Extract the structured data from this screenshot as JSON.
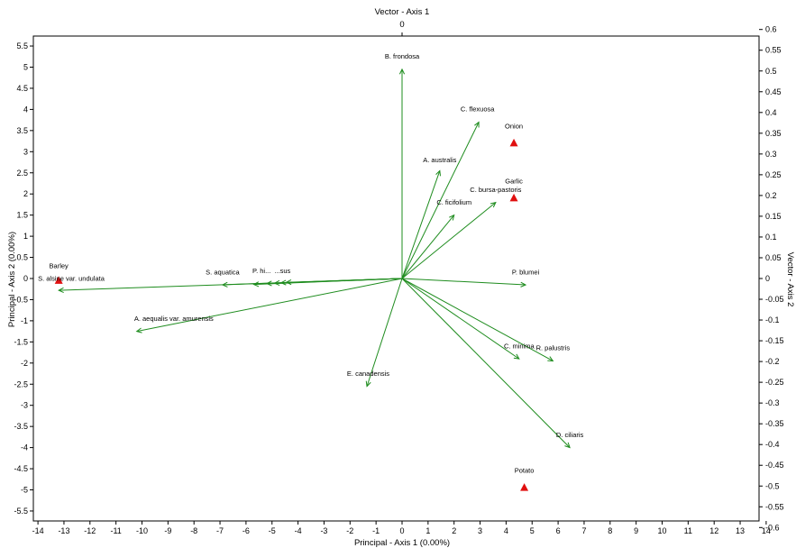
{
  "chart_data": {
    "type": "scatter",
    "subtype": "biplot",
    "title": "",
    "top_axis_title": "Vector - Axis 1",
    "top_axis_tick": "0",
    "xlabel": "Principal - Axis 1 (0.00%)",
    "ylabel": "Principal - Axis 2 (0.00%)",
    "right_axis_title": "Vector - Axis 2",
    "xlim": [
      -14.3,
      14.6
    ],
    "ylim": [
      -5.8,
      5.8
    ],
    "right_ylim": [
      -0.64,
      0.64
    ],
    "x_ticks": [
      -14,
      -13,
      -12,
      -11,
      -10,
      -9,
      -8,
      -7,
      -6,
      -5,
      -4,
      -3,
      -2,
      -1,
      0,
      1,
      2,
      3,
      4,
      5,
      6,
      7,
      8,
      9,
      10,
      11,
      12,
      13,
      14
    ],
    "y_ticks": [
      -5.5,
      -5,
      -4.5,
      -4,
      -3.5,
      -3,
      -2.5,
      -2,
      -1.5,
      -1,
      -0.5,
      0,
      0.5,
      1,
      1.5,
      2,
      2.5,
      3,
      3.5,
      4,
      4.5,
      5,
      5.5
    ],
    "right_ticks": [
      -0.6,
      -0.55,
      -0.5,
      -0.45,
      -0.4,
      -0.35,
      -0.3,
      -0.25,
      -0.2,
      -0.15,
      -0.1,
      -0.05,
      0,
      0.05,
      0.1,
      0.15,
      0.2,
      0.25,
      0.3,
      0.35,
      0.4,
      0.45,
      0.5,
      0.55,
      0.6
    ],
    "grid": false,
    "colors": {
      "vector": "#1e8c1e",
      "point": "#e01010",
      "axis": "#000000"
    },
    "vectors": [
      {
        "name": "B. frondosa",
        "x": 0.0,
        "y": 4.95
      },
      {
        "name": "C. flexuosa",
        "x": 2.95,
        "y": 3.7
      },
      {
        "name": "A. australis",
        "x": 1.45,
        "y": 2.55
      },
      {
        "name": "C. bursa-pastoris",
        "x": 3.6,
        "y": 1.8
      },
      {
        "name": "C. ficifolium",
        "x": 2.0,
        "y": 1.5
      },
      {
        "name": "P. blumei",
        "x": 4.75,
        "y": -0.15
      },
      {
        "name": "C. minima",
        "x": 4.5,
        "y": -1.9
      },
      {
        "name": "R. palustris",
        "x": 5.8,
        "y": -1.95
      },
      {
        "name": "D. ciliaris",
        "x": 6.45,
        "y": -4.0
      },
      {
        "name": "E. canadensis",
        "x": -1.35,
        "y": -2.55
      },
      {
        "name": "A. aequalis var. amurensis",
        "x": -10.2,
        "y": -1.25
      },
      {
        "name": "S. alsine var. undulata",
        "x": -13.2,
        "y": -0.28
      },
      {
        "name": "S. aquatica",
        "x": -6.9,
        "y": -0.15
      },
      {
        "name": "P. hi...",
        "x": -5.7,
        "y": -0.14
      },
      {
        "name": "...",
        "x": -5.2,
        "y": -0.12
      },
      {
        "name": "...",
        "x": -4.9,
        "y": -0.11
      },
      {
        "name": "...",
        "x": -4.65,
        "y": -0.1
      },
      {
        "name": "...sus",
        "x": -4.45,
        "y": -0.09
      }
    ],
    "points": [
      {
        "name": "Onion",
        "x": 4.3,
        "y": 3.2
      },
      {
        "name": "Garlic",
        "x": 4.3,
        "y": 1.9
      },
      {
        "name": "Barley",
        "x": -13.2,
        "y": -0.05
      },
      {
        "name": "Potato",
        "x": 4.7,
        "y": -4.95
      }
    ],
    "vector_labels": [
      {
        "text": "B. frondosa",
        "x": 0.0,
        "y": 5.2,
        "anchor": "middle"
      },
      {
        "text": "C. flexuosa",
        "x": 2.9,
        "y": 3.95,
        "anchor": "middle"
      },
      {
        "text": "A. australis",
        "x": 1.45,
        "y": 2.75,
        "anchor": "middle"
      },
      {
        "text": "C. bursa-pastoris",
        "x": 3.6,
        "y": 2.05,
        "anchor": "middle"
      },
      {
        "text": "C. ficifolium",
        "x": 2.0,
        "y": 1.75,
        "anchor": "middle"
      },
      {
        "text": "P. blumei",
        "x": 4.75,
        "y": 0.1,
        "anchor": "middle"
      },
      {
        "text": "C. minima",
        "x": 4.5,
        "y": -1.65,
        "anchor": "middle"
      },
      {
        "text": "R. palustris",
        "x": 5.8,
        "y": -1.7,
        "anchor": "middle"
      },
      {
        "text": "D. ciliaris",
        "x": 6.45,
        "y": -3.75,
        "anchor": "middle"
      },
      {
        "text": "E. canadensis",
        "x": -1.3,
        "y": -2.3,
        "anchor": "middle"
      },
      {
        "text": "A. aequalis var. amurensis",
        "x": -10.3,
        "y": -1.0,
        "anchor": "start"
      },
      {
        "text": "S. alsine var. undulata",
        "x": -14.0,
        "y": -0.05,
        "anchor": "start"
      },
      {
        "text": "S. aquatica",
        "x": -6.9,
        "y": 0.1,
        "anchor": "middle"
      },
      {
        "text": "P. hi...",
        "x": -5.4,
        "y": 0.13,
        "anchor": "middle"
      },
      {
        "text": "...sus",
        "x": -4.6,
        "y": 0.13,
        "anchor": "middle"
      }
    ],
    "point_labels": [
      {
        "text": "Onion",
        "x": 4.3,
        "y": 3.55,
        "anchor": "middle"
      },
      {
        "text": "Garlic",
        "x": 4.3,
        "y": 2.25,
        "anchor": "middle"
      },
      {
        "text": "Barley",
        "x": -13.2,
        "y": 0.25,
        "anchor": "middle"
      },
      {
        "text": "Potato",
        "x": 4.7,
        "y": -4.6,
        "anchor": "middle"
      }
    ]
  }
}
